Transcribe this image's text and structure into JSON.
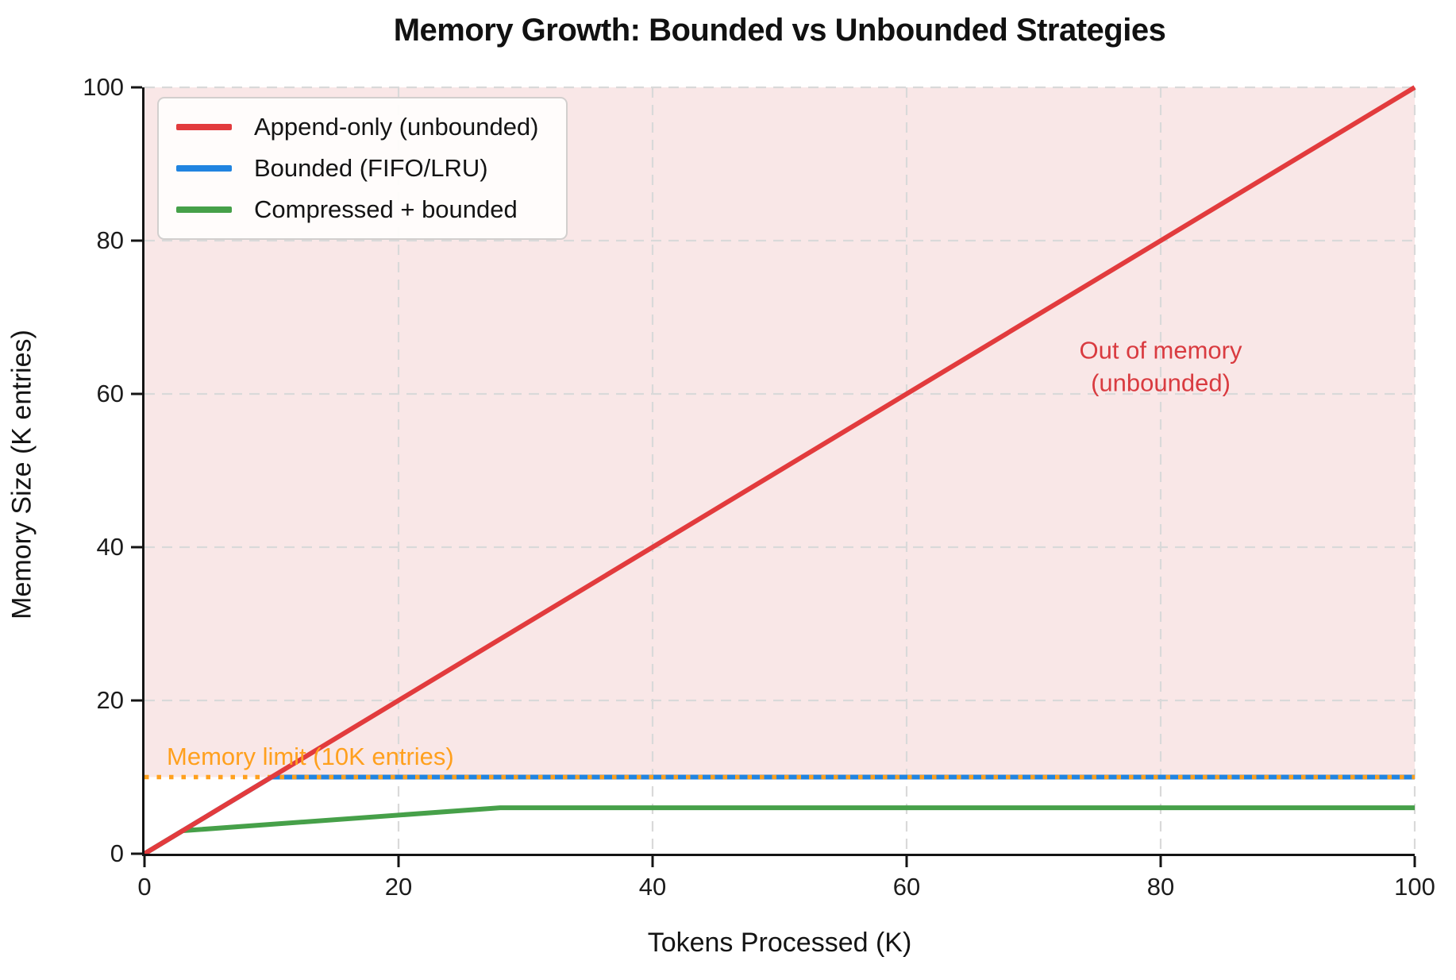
{
  "chart_data": {
    "type": "line",
    "title": "Memory Growth: Bounded vs Unbounded Strategies",
    "xlabel": "Tokens Processed (K)",
    "ylabel": "Memory Size (K entries)",
    "xlim": [
      0,
      100
    ],
    "ylim": [
      0,
      100
    ],
    "xticks": [
      0,
      20,
      40,
      60,
      80,
      100
    ],
    "yticks": [
      0,
      20,
      40,
      60,
      80,
      100
    ],
    "grid": {
      "visible": true,
      "style": "dashed",
      "color": "#d9d9d9"
    },
    "legend_position": "upper left",
    "series": [
      {
        "name": "Append-only (unbounded)",
        "color": "#e23b3d",
        "zorder": 5,
        "points": [
          [
            0,
            0
          ],
          [
            100,
            100
          ]
        ]
      },
      {
        "name": "Bounded (FIFO/LRU)",
        "color": "#2184e0",
        "zorder": 2,
        "points": [
          [
            0,
            0
          ],
          [
            10,
            10
          ],
          [
            100,
            10
          ]
        ]
      },
      {
        "name": "Compressed + bounded",
        "color": "#46a049",
        "zorder": 3,
        "points": [
          [
            0,
            0
          ],
          [
            3,
            3
          ],
          [
            28,
            6
          ],
          [
            100,
            6
          ]
        ]
      }
    ],
    "limit_line": {
      "label": "Memory limit (10K entries)",
      "y": 10,
      "color": "#ffa01e",
      "style": "dotted",
      "zorder": 4
    },
    "shaded_region": {
      "from_y": 10,
      "to_y": 100,
      "color": "#f9e7e7",
      "meaning": "region above memory limit"
    },
    "annotations": [
      {
        "lines": [
          "Out of memory",
          "(unbounded)"
        ],
        "x": 80,
        "y": 63.5,
        "color": "#d93b40"
      }
    ]
  }
}
